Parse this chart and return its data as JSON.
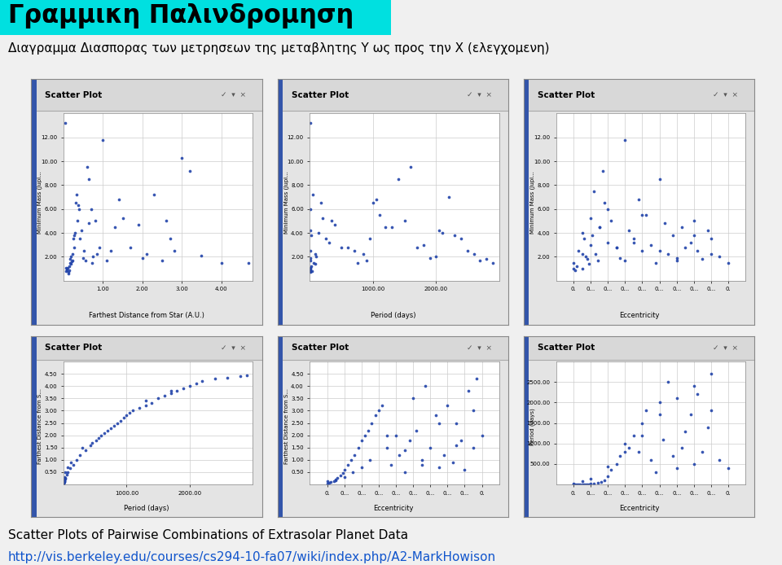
{
  "title1": "Γραμμικη Παλινδρομηση",
  "title2": "Διαγραμμα Διασπορας των μετρησεων της μεταβλητης Υ ως προς την Χ (ελεγχομενη)",
  "footer1": "Scatter Plots of Pairwise Combinations of Extrasolar Planet Data",
  "footer2": "http://vis.berkeley.edu/courses/cs294-10-fa07/wiki/index.php/A2-MarkHowison",
  "background_color": "#f0f0f0",
  "title_bg": "#00e0e0",
  "dot_color": "#2244aa",
  "panels": [
    {
      "xlabel": "Farthest Distance from Star (A.U.)",
      "ylabel": "Minimum Mass (Jupi...",
      "title": "Scatter Plot",
      "xlim": [
        0,
        4.8
      ],
      "ylim": [
        0,
        14
      ],
      "xticks": [
        1.0,
        2.0,
        3.0,
        4.0
      ],
      "yticks": [
        2.0,
        4.0,
        6.0,
        8.0,
        10.0,
        12.0
      ],
      "xticklabels": [
        "1.00",
        "2.00",
        "3.00",
        "4.00"
      ],
      "yticklabels": [
        "2.00",
        "4.00",
        "6.00",
        "8.00",
        "10.00",
        "12.00"
      ],
      "scatter_x": [
        0.05,
        0.06,
        0.07,
        0.08,
        0.09,
        0.1,
        0.12,
        0.13,
        0.14,
        0.15,
        0.16,
        0.17,
        0.18,
        0.19,
        0.2,
        0.22,
        0.23,
        0.25,
        0.26,
        0.27,
        0.28,
        0.3,
        0.32,
        0.35,
        0.38,
        0.4,
        0.42,
        0.45,
        0.5,
        0.52,
        0.55,
        0.6,
        0.63,
        0.65,
        0.7,
        0.72,
        0.75,
        0.8,
        0.85,
        0.9,
        1.0,
        1.1,
        1.2,
        1.3,
        1.4,
        1.5,
        1.7,
        1.9,
        2.0,
        2.1,
        2.3,
        2.5,
        2.6,
        2.7,
        2.8,
        3.0,
        3.2,
        3.5,
        4.0,
        4.7
      ],
      "scatter_y": [
        13.2,
        1.1,
        0.8,
        0.9,
        1.0,
        1.1,
        0.7,
        0.6,
        0.9,
        1.2,
        1.5,
        1.8,
        2.0,
        1.4,
        1.6,
        2.2,
        1.7,
        3.5,
        2.8,
        3.8,
        4.0,
        6.5,
        7.2,
        5.0,
        6.3,
        6.0,
        3.5,
        4.2,
        1.9,
        2.5,
        1.7,
        9.5,
        8.5,
        4.8,
        6.0,
        1.5,
        2.0,
        5.0,
        2.2,
        2.8,
        11.8,
        1.7,
        2.5,
        4.5,
        6.8,
        5.2,
        2.8,
        4.7,
        1.9,
        2.2,
        7.2,
        1.7,
        5.0,
        3.5,
        2.5,
        10.3,
        9.2,
        2.1,
        1.5,
        1.5
      ]
    },
    {
      "xlabel": "Period (days)",
      "ylabel": "Minimum Mass (Jupi...",
      "title": "Scatter Plot",
      "xlim": [
        0,
        3000
      ],
      "ylim": [
        0,
        14
      ],
      "xticks": [
        1000,
        2000
      ],
      "yticks": [
        2.0,
        4.0,
        6.0,
        8.0,
        10.0,
        12.0
      ],
      "xticklabels": [
        "1000.00",
        "2000.00"
      ],
      "yticklabels": [
        "2.00",
        "4.00",
        "6.00",
        "8.00",
        "10.00",
        "12.00"
      ],
      "scatter_x": [
        3.1,
        3.5,
        4.0,
        4.6,
        5.5,
        14.6,
        30,
        60,
        90,
        130,
        180,
        250,
        340,
        500,
        700,
        900,
        1000,
        1100,
        1200,
        1400,
        1600,
        1800,
        2000,
        2100,
        2200,
        2400,
        2600,
        2800,
        3.0,
        3.2,
        3.8,
        4.2,
        6.0,
        10.0,
        20.0,
        40.0,
        80.0,
        100,
        200,
        300,
        400,
        600,
        750,
        850,
        950,
        1050,
        1300,
        1500,
        1700,
        1900,
        2050,
        2300,
        2500,
        2700,
        2900
      ],
      "scatter_y": [
        13.2,
        0.8,
        1.1,
        1.0,
        0.9,
        1.2,
        0.8,
        1.5,
        2.2,
        4.0,
        6.5,
        3.5,
        5.0,
        2.8,
        2.5,
        1.7,
        6.5,
        5.5,
        4.5,
        8.5,
        9.5,
        3.0,
        2.0,
        4.0,
        7.0,
        3.5,
        2.2,
        1.8,
        1.7,
        0.7,
        1.9,
        2.5,
        4.2,
        6.0,
        3.8,
        7.2,
        1.4,
        2.0,
        5.2,
        3.2,
        4.7,
        2.8,
        1.5,
        2.2,
        3.5,
        6.8,
        4.5,
        5.0,
        2.8,
        1.9,
        4.2,
        3.8,
        2.5,
        1.7,
        1.5
      ]
    },
    {
      "xlabel": "Eccentricity",
      "ylabel": "Minimum Mass (Jupi...",
      "title": "Scatter Plot",
      "xlim": [
        -0.1,
        1.0
      ],
      "ylim": [
        0,
        14
      ],
      "xticks": [
        0.0,
        0.1,
        0.2,
        0.3,
        0.4,
        0.5,
        0.6,
        0.7,
        0.8,
        0.9
      ],
      "yticks": [
        2.0,
        4.0,
        6.0,
        8.0,
        10.0,
        12.0
      ],
      "xticklabels": [
        "0.",
        "0...",
        "0...",
        "0...",
        "0...",
        "0...",
        "0...",
        "0...",
        "0...",
        "0."
      ],
      "yticklabels": [
        "2.00",
        "4.00",
        "6.00",
        "8.00",
        "10.00",
        "12.00"
      ],
      "scatter_x": [
        0.0,
        0.01,
        0.02,
        0.03,
        0.05,
        0.05,
        0.06,
        0.07,
        0.08,
        0.09,
        0.1,
        0.11,
        0.12,
        0.13,
        0.14,
        0.15,
        0.17,
        0.18,
        0.2,
        0.22,
        0.25,
        0.27,
        0.3,
        0.32,
        0.35,
        0.38,
        0.4,
        0.42,
        0.45,
        0.48,
        0.5,
        0.53,
        0.55,
        0.58,
        0.6,
        0.63,
        0.65,
        0.68,
        0.7,
        0.72,
        0.75,
        0.78,
        0.8,
        0.85,
        0.9,
        0.0,
        0.05,
        0.1,
        0.15,
        0.2,
        0.25,
        0.3,
        0.35,
        0.4,
        0.5,
        0.6,
        0.7,
        0.8
      ],
      "scatter_y": [
        1.5,
        0.9,
        1.2,
        2.5,
        4.0,
        1.0,
        3.5,
        2.0,
        1.8,
        1.4,
        5.2,
        3.8,
        7.5,
        2.2,
        1.7,
        4.5,
        9.2,
        6.5,
        3.2,
        5.0,
        2.8,
        1.9,
        11.8,
        4.2,
        3.5,
        6.8,
        2.5,
        5.5,
        3.0,
        1.5,
        8.5,
        4.8,
        2.2,
        3.8,
        1.7,
        4.5,
        2.8,
        3.2,
        5.0,
        2.5,
        1.8,
        4.2,
        3.5,
        2.0,
        1.5,
        1.0,
        2.2,
        3.0,
        4.5,
        6.0,
        2.8,
        1.7,
        3.2,
        5.5,
        2.5,
        1.9,
        3.8,
        2.2
      ]
    },
    {
      "xlabel": "Period (days)",
      "ylabel": "Farthest Distance from S...",
      "title": "Scatter Plot",
      "xlim": [
        0,
        3000
      ],
      "ylim": [
        0,
        5.0
      ],
      "xticks": [
        1000,
        2000
      ],
      "yticks": [
        0.5,
        1.0,
        1.5,
        2.0,
        2.5,
        3.0,
        3.5,
        4.0,
        4.5
      ],
      "xticklabels": [
        "1000.00",
        "2000.00"
      ],
      "yticklabels": [
        "0.50",
        "1.00",
        "1.50",
        "2.00",
        "2.50",
        "3.00",
        "3.50",
        "4.00",
        "4.50"
      ],
      "scatter_x": [
        3.0,
        3.5,
        4.0,
        4.5,
        5.0,
        5.5,
        6.5,
        8.0,
        10,
        14,
        20,
        30,
        50,
        70,
        100,
        150,
        200,
        260,
        350,
        430,
        520,
        600,
        700,
        800,
        900,
        1000,
        1100,
        1200,
        1300,
        1400,
        1500,
        1600,
        1700,
        1800,
        1900,
        2000,
        2100,
        2200,
        2400,
        2600,
        2800,
        2900,
        3.2,
        3.8,
        4.2,
        6.0,
        12,
        25,
        60,
        120,
        300,
        450,
        550,
        650,
        750,
        850,
        950,
        1050,
        1300,
        1700
      ],
      "scatter_y": [
        0.05,
        0.06,
        0.07,
        0.08,
        0.09,
        0.1,
        0.11,
        0.12,
        0.15,
        0.18,
        0.22,
        0.28,
        0.4,
        0.5,
        0.65,
        0.8,
        1.0,
        1.2,
        1.4,
        1.6,
        1.8,
        2.0,
        2.2,
        2.4,
        2.6,
        2.8,
        3.0,
        3.1,
        3.2,
        3.3,
        3.5,
        3.6,
        3.7,
        3.8,
        3.9,
        4.0,
        4.1,
        4.2,
        4.3,
        4.35,
        4.4,
        4.45,
        0.06,
        0.09,
        0.13,
        0.2,
        0.3,
        0.5,
        0.7,
        0.9,
        1.5,
        1.7,
        1.9,
        2.1,
        2.3,
        2.5,
        2.7,
        2.9,
        3.4,
        3.8
      ]
    },
    {
      "xlabel": "Eccentricity",
      "ylabel": "Farthest Distance from S...",
      "title": "Scatter Plot",
      "xlim": [
        -0.1,
        1.0
      ],
      "ylim": [
        0,
        5.0
      ],
      "xticks": [
        0.0,
        0.1,
        0.2,
        0.3,
        0.4,
        0.5,
        0.6,
        0.7,
        0.8,
        0.9
      ],
      "yticks": [
        0.5,
        1.0,
        1.5,
        2.0,
        2.5,
        3.0,
        3.5,
        4.0,
        4.5
      ],
      "xticklabels": [
        "0.",
        "0...",
        "0...",
        "0...",
        "0...",
        "0...",
        "0...",
        "0...",
        "0...",
        "0."
      ],
      "yticklabels": [
        "0.50",
        "1.00",
        "1.50",
        "2.00",
        "2.50",
        "3.00",
        "3.50",
        "4.00",
        "4.50"
      ],
      "scatter_x": [
        0.0,
        0.01,
        0.02,
        0.04,
        0.05,
        0.06,
        0.08,
        0.09,
        0.1,
        0.12,
        0.14,
        0.16,
        0.18,
        0.2,
        0.22,
        0.24,
        0.26,
        0.28,
        0.3,
        0.32,
        0.35,
        0.37,
        0.4,
        0.42,
        0.45,
        0.48,
        0.5,
        0.52,
        0.55,
        0.57,
        0.6,
        0.63,
        0.65,
        0.68,
        0.7,
        0.73,
        0.75,
        0.78,
        0.8,
        0.82,
        0.85,
        0.87,
        0.9,
        0.0,
        0.05,
        0.1,
        0.15,
        0.2,
        0.25,
        0.35,
        0.45,
        0.55,
        0.65,
        0.75,
        0.85
      ],
      "scatter_y": [
        0.05,
        0.08,
        0.1,
        0.15,
        0.2,
        0.25,
        0.35,
        0.45,
        0.6,
        0.8,
        1.0,
        1.2,
        1.5,
        1.8,
        2.0,
        2.2,
        2.5,
        2.8,
        3.0,
        3.2,
        1.5,
        0.8,
        2.0,
        1.2,
        0.5,
        1.8,
        3.5,
        2.2,
        1.0,
        4.0,
        1.5,
        2.8,
        0.7,
        1.2,
        3.2,
        0.9,
        2.5,
        1.8,
        0.6,
        3.8,
        1.5,
        4.3,
        2.0,
        0.12,
        0.18,
        0.3,
        0.5,
        0.7,
        1.0,
        2.0,
        1.4,
        0.8,
        2.5,
        1.6,
        3.0
      ]
    },
    {
      "xlabel": "Eccentricity",
      "ylabel": "Period (days)",
      "title": "Scatter Plot",
      "xlim": [
        -0.1,
        1.0
      ],
      "ylim": [
        0,
        3000
      ],
      "xticks": [
        0.0,
        0.1,
        0.2,
        0.3,
        0.4,
        0.5,
        0.6,
        0.7,
        0.8,
        0.9
      ],
      "yticks": [
        500,
        1000,
        1500,
        2000,
        2500
      ],
      "xticklabels": [
        "0.",
        "0...",
        "0...",
        "0...",
        "0...",
        "0...",
        "0...",
        "0...",
        "0...",
        "0."
      ],
      "yticklabels": [
        "500.00",
        "1000.00",
        "1500.00",
        "2000.00",
        "2500.00"
      ],
      "scatter_x": [
        0.0,
        0.01,
        0.02,
        0.03,
        0.04,
        0.05,
        0.06,
        0.07,
        0.08,
        0.09,
        0.1,
        0.12,
        0.14,
        0.16,
        0.18,
        0.2,
        0.22,
        0.25,
        0.27,
        0.3,
        0.32,
        0.35,
        0.38,
        0.4,
        0.42,
        0.45,
        0.48,
        0.5,
        0.52,
        0.55,
        0.58,
        0.6,
        0.63,
        0.65,
        0.68,
        0.7,
        0.72,
        0.75,
        0.78,
        0.8,
        0.85,
        0.9,
        0.0,
        0.05,
        0.1,
        0.2,
        0.3,
        0.4,
        0.5,
        0.6,
        0.7,
        0.8
      ],
      "scatter_y": [
        3.0,
        5.0,
        4.0,
        3.5,
        3.2,
        4.5,
        6.0,
        5.5,
        8.0,
        10,
        15,
        25,
        40,
        60,
        100,
        200,
        350,
        500,
        700,
        1000,
        900,
        1200,
        800,
        1500,
        1800,
        600,
        300,
        2000,
        1100,
        2500,
        700,
        400,
        900,
        1300,
        1700,
        500,
        2200,
        800,
        1400,
        1800,
        600,
        400,
        14,
        90,
        130,
        430,
        800,
        1200,
        1700,
        2100,
        2400,
        2700
      ]
    }
  ]
}
